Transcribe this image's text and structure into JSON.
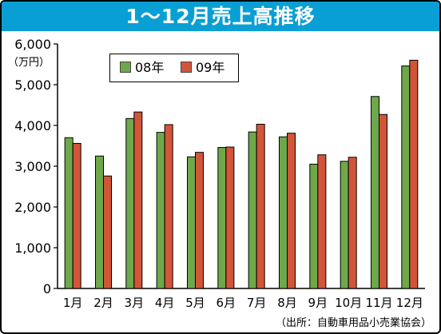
{
  "title": "1～12月売上高推移",
  "unit_label": "（万円）",
  "source_note": "（出所：自動車用品小売業協会）",
  "colors": {
    "title_bg": "#0a9fd4",
    "series_08": "#6fa84a",
    "series_09": "#d2553a"
  },
  "chart_data": {
    "type": "bar",
    "title": "1～12月売上高推移",
    "ylabel": "（万円）",
    "xlabel": "",
    "categories": [
      "1月",
      "2月",
      "3月",
      "4月",
      "5月",
      "6月",
      "7月",
      "8月",
      "9月",
      "10月",
      "11月",
      "12月"
    ],
    "series": [
      {
        "name": "08年",
        "color": "#6fa84a",
        "values": [
          3700,
          3250,
          4170,
          3830,
          3230,
          3460,
          3840,
          3720,
          3050,
          3120,
          4710,
          5460
        ]
      },
      {
        "name": "09年",
        "color": "#d2553a",
        "values": [
          3560,
          2760,
          4330,
          4020,
          3340,
          3470,
          4030,
          3810,
          3280,
          3220,
          4270,
          5600
        ]
      }
    ],
    "ylim": [
      0,
      6000
    ],
    "yticks": [
      0,
      1000,
      2000,
      3000,
      4000,
      5000,
      6000
    ],
    "ytick_labels": [
      "0",
      "1,000",
      "2,000",
      "3,000",
      "4,000",
      "5,000",
      "6,000"
    ],
    "legend_position": "top-left",
    "grid": false
  }
}
